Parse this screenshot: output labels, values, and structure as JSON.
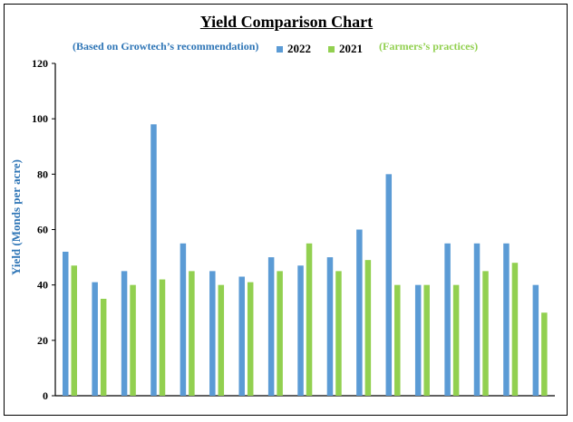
{
  "chart_data": {
    "type": "bar",
    "title": "Yield Comparison Chart",
    "subtitle_left": "(Based on Growtech’s recommendation)",
    "subtitle_right": "(Farmers’s practices)",
    "xlabel": "",
    "ylabel": "Yield (Monds per acre)",
    "ylim": [
      0,
      120
    ],
    "yticks": [
      0,
      20,
      40,
      60,
      80,
      100,
      120
    ],
    "grid": false,
    "legend_position": "top-center",
    "categories": [
      "",
      "",
      "",
      "",
      "",
      "",
      "",
      "",
      "",
      "",
      "",
      "",
      "",
      "",
      "",
      "",
      ""
    ],
    "series": [
      {
        "name": "2022",
        "color": "#5b9bd5",
        "values": [
          52,
          41,
          45,
          98,
          55,
          45,
          43,
          50,
          47,
          50,
          60,
          80,
          40,
          55,
          55,
          55,
          40
        ]
      },
      {
        "name": "2021",
        "color": "#92d050",
        "values": [
          47,
          35,
          40,
          42,
          45,
          40,
          41,
          45,
          55,
          45,
          49,
          40,
          40,
          40,
          45,
          48,
          30
        ]
      }
    ]
  }
}
